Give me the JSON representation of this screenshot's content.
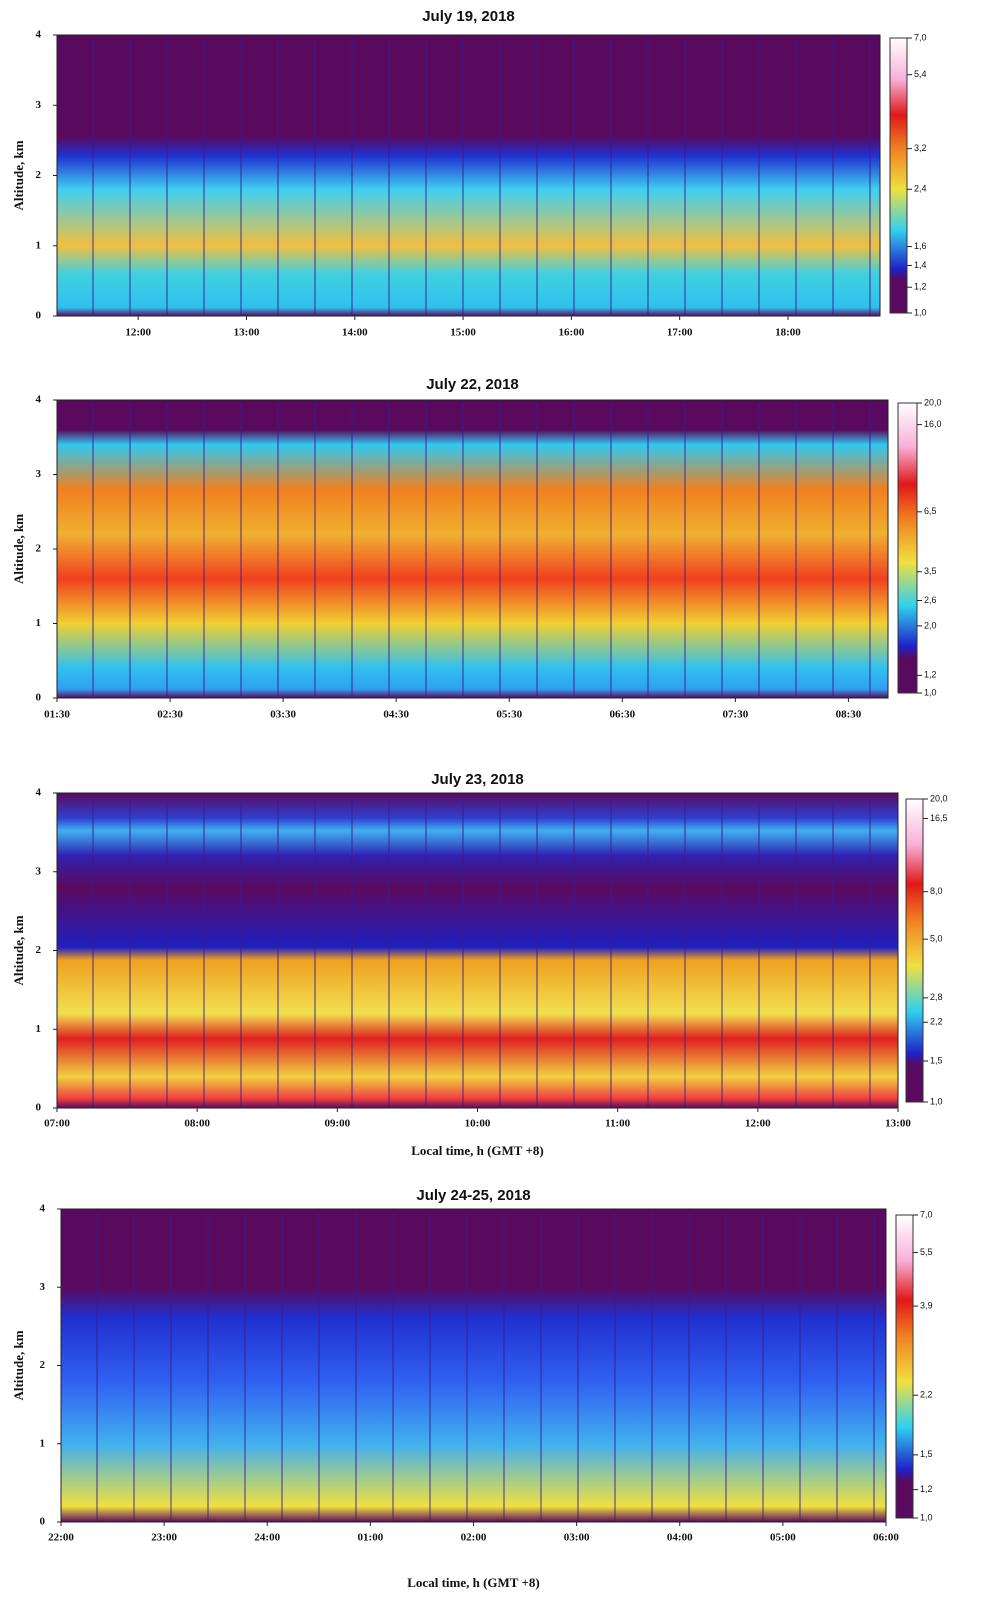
{
  "chart_data": [
    {
      "type": "heatmap",
      "title": "July 19, 2018",
      "y_label": "Altitude, km",
      "xlim": [
        11.25,
        18.85
      ],
      "xticks": [
        {
          "value": 12,
          "label": "12:00"
        },
        {
          "value": 13,
          "label": "13:00"
        },
        {
          "value": 14,
          "label": "14:00"
        },
        {
          "value": 15,
          "label": "15:00"
        },
        {
          "value": 16,
          "label": "16:00"
        },
        {
          "value": 17,
          "label": "17:00"
        },
        {
          "value": 18,
          "label": "18:00"
        }
      ],
      "ylim": [
        0,
        4
      ],
      "yticks": [
        0,
        1,
        2,
        3,
        4
      ],
      "colorbar": {
        "scale": "log",
        "lim": [
          1,
          7
        ],
        "ticks": [
          {
            "value": 7,
            "label": "7,0"
          },
          {
            "value": 5.4,
            "label": "5,4"
          },
          {
            "value": 3.2,
            "label": "3,2"
          },
          {
            "value": 2.4,
            "label": "2,4"
          },
          {
            "value": 1.6,
            "label": "1,6"
          },
          {
            "value": 1.4,
            "label": "1,4"
          },
          {
            "value": 1.2,
            "label": "1,2"
          },
          {
            "value": 1,
            "label": "1,0"
          }
        ]
      }
    },
    {
      "type": "heatmap",
      "title": "July 22, 2018",
      "y_label": "Altitude, km",
      "xlim": [
        1.5,
        8.85
      ],
      "xticks": [
        {
          "value": 1.5,
          "label": "01:30"
        },
        {
          "value": 2.5,
          "label": "02:30"
        },
        {
          "value": 3.5,
          "label": "03:30"
        },
        {
          "value": 4.5,
          "label": "04:30"
        },
        {
          "value": 5.5,
          "label": "05:30"
        },
        {
          "value": 6.5,
          "label": "06:30"
        },
        {
          "value": 7.5,
          "label": "07:30"
        },
        {
          "value": 8.5,
          "label": "08:30"
        }
      ],
      "ylim": [
        0,
        4
      ],
      "yticks": [
        0,
        1,
        2,
        3,
        4
      ],
      "colorbar": {
        "scale": "log",
        "lim": [
          1,
          20
        ],
        "ticks": [
          {
            "value": 20,
            "label": "20,0"
          },
          {
            "value": 16,
            "label": "16,0"
          },
          {
            "value": 6.5,
            "label": "6,5"
          },
          {
            "value": 3.5,
            "label": "3,5"
          },
          {
            "value": 2.6,
            "label": "2,6"
          },
          {
            "value": 2,
            "label": "2,0"
          },
          {
            "value": 1.2,
            "label": "1,2"
          },
          {
            "value": 1,
            "label": "1,0"
          }
        ]
      }
    },
    {
      "type": "heatmap",
      "title": "July 23, 2018",
      "y_label": "Altitude, km",
      "x_label": "Local time, h (GMT +8)",
      "xlim": [
        7,
        13
      ],
      "xticks": [
        {
          "value": 7,
          "label": "07:00"
        },
        {
          "value": 8,
          "label": "08:00"
        },
        {
          "value": 9,
          "label": "09:00"
        },
        {
          "value": 10,
          "label": "10:00"
        },
        {
          "value": 11,
          "label": "11:00"
        },
        {
          "value": 12,
          "label": "12:00"
        },
        {
          "value": 13,
          "label": "13:00"
        }
      ],
      "ylim": [
        0,
        4
      ],
      "yticks": [
        0,
        1,
        2,
        3,
        4
      ],
      "colorbar": {
        "scale": "log",
        "lim": [
          1,
          20
        ],
        "ticks": [
          {
            "value": 20,
            "label": "20,0"
          },
          {
            "value": 16.5,
            "label": "16,5"
          },
          {
            "value": 8,
            "label": "8,0"
          },
          {
            "value": 5,
            "label": "5,0"
          },
          {
            "value": 2.8,
            "label": "2,8"
          },
          {
            "value": 2.2,
            "label": "2,2"
          },
          {
            "value": 1.5,
            "label": "1,5"
          },
          {
            "value": 1,
            "label": "1,0"
          }
        ]
      }
    },
    {
      "type": "heatmap",
      "title": "July 24-25, 2018",
      "y_label": "Altitude, km",
      "x_label": "Local time, h (GMT +8)",
      "xlim": [
        22,
        30
      ],
      "xticks": [
        {
          "value": 22,
          "label": "22:00"
        },
        {
          "value": 23,
          "label": "23:00"
        },
        {
          "value": 24,
          "label": "24:00"
        },
        {
          "value": 25,
          "label": "01:00"
        },
        {
          "value": 26,
          "label": "02:00"
        },
        {
          "value": 27,
          "label": "03:00"
        },
        {
          "value": 28,
          "label": "04:00"
        },
        {
          "value": 29,
          "label": "05:00"
        },
        {
          "value": 30,
          "label": "06:00"
        }
      ],
      "ylim": [
        0,
        4
      ],
      "yticks": [
        0,
        1,
        2,
        3,
        4
      ],
      "colorbar": {
        "scale": "log",
        "lim": [
          1,
          7
        ],
        "ticks": [
          {
            "value": 7,
            "label": "7,0"
          },
          {
            "value": 5.5,
            "label": "5,5"
          },
          {
            "value": 3.9,
            "label": "3,9"
          },
          {
            "value": 2.2,
            "label": "2,2"
          },
          {
            "value": 1.5,
            "label": "1,5"
          },
          {
            "value": 1.2,
            "label": "1,2"
          },
          {
            "value": 1,
            "label": "1,0"
          }
        ]
      }
    }
  ]
}
